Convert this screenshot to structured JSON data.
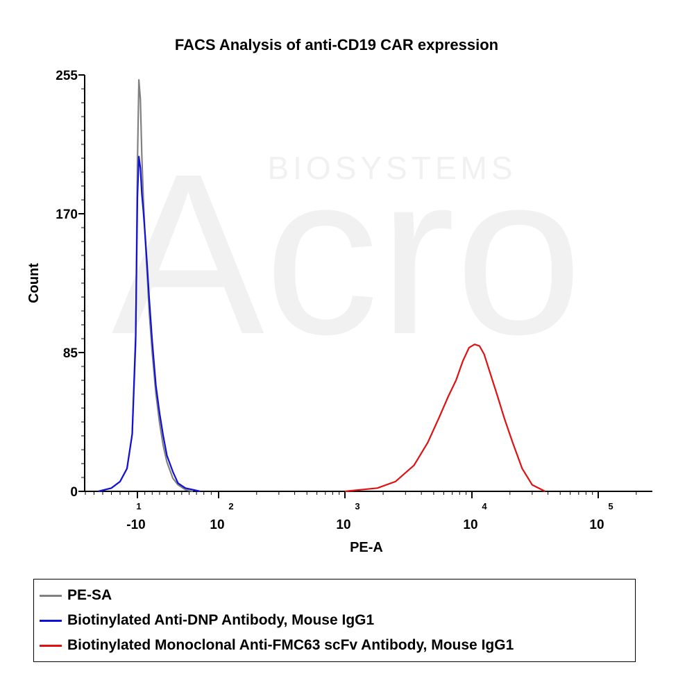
{
  "chart_data": {
    "type": "line",
    "title": "FACS Analysis of anti-CD19 CAR expression",
    "xlabel": "PE-A",
    "ylabel": "Count",
    "y_ticks": [
      "0",
      "85",
      "170",
      "255"
    ],
    "ylim": [
      0,
      255
    ],
    "x_scale": "biexponential",
    "x_ticks": [
      {
        "base": "-10",
        "exp": "1"
      },
      {
        "base": "10",
        "exp": "2"
      },
      {
        "base": "10",
        "exp": "3"
      },
      {
        "base": "10",
        "exp": "4"
      },
      {
        "base": "10",
        "exp": "5"
      }
    ],
    "legend_placement": "bottom",
    "series": [
      {
        "name": "PE-SA",
        "color": "#808080",
        "x": [
          -55,
          -40,
          -30,
          -22,
          -16,
          -12,
          -10,
          -8,
          -6,
          -4,
          -2,
          0,
          3,
          6,
          10,
          15,
          20,
          25,
          30,
          38,
          45,
          55,
          65
        ],
        "y": [
          0,
          2,
          6,
          14,
          35,
          90,
          200,
          252,
          240,
          205,
          180,
          160,
          135,
          110,
          85,
          60,
          42,
          28,
          18,
          8,
          4,
          1,
          0
        ]
      },
      {
        "name": "Biotinylated Anti-DNP Antibody, Mouse IgG1",
        "color": "#1010d8",
        "x": [
          -55,
          -40,
          -30,
          -22,
          -16,
          -12,
          -10,
          -8,
          -6,
          -4,
          -2,
          0,
          3,
          6,
          10,
          15,
          20,
          25,
          30,
          38,
          45,
          55,
          65,
          75
        ],
        "y": [
          0,
          2,
          6,
          14,
          35,
          95,
          180,
          205,
          198,
          182,
          172,
          160,
          140,
          118,
          92,
          65,
          48,
          34,
          22,
          12,
          5,
          2,
          1,
          0
        ]
      },
      {
        "name": "Biotinylated Monoclonal Anti-FMC63 scFv Antibody, Mouse IgG1",
        "color": "#e01010",
        "x": [
          1000,
          1800,
          2500,
          3500,
          4500,
          5500,
          6500,
          7500,
          8500,
          9500,
          10500,
          11500,
          12500,
          14000,
          16000,
          18000,
          21000,
          25000,
          30000,
          38000
        ],
        "y": [
          0,
          2,
          6,
          16,
          30,
          45,
          58,
          68,
          80,
          88,
          90,
          89,
          84,
          72,
          58,
          45,
          30,
          14,
          4,
          0
        ]
      }
    ]
  },
  "watermark": {
    "brand": "Acro",
    "sub": "BIOSYSTEMS"
  }
}
